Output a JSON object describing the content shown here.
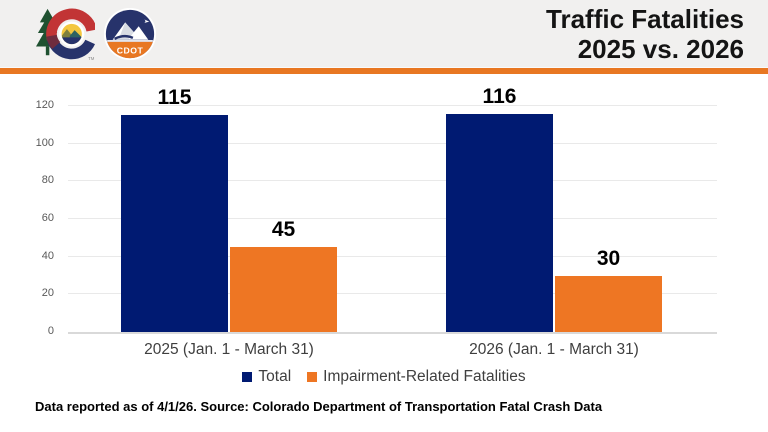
{
  "header": {
    "title_line1": "Traffic Fatalities",
    "title_line2": "2025 vs. 2026",
    "cdot_label": "CDOT",
    "trademark": "TM"
  },
  "colors": {
    "navy": "#001A72",
    "orange": "#EE7623",
    "divider_orange": "#E87722",
    "header_bg": "#F1F0EF",
    "gridline": "#E9E9E9",
    "axis_tick_text": "#595959",
    "category_text": "#3F3F3F"
  },
  "chart_data": {
    "type": "bar",
    "title": "Traffic Fatalities 2025 vs. 2026",
    "categories": [
      "2025 (Jan. 1 - March 31)",
      "2026 (Jan. 1 - March 31)"
    ],
    "series": [
      {
        "name": "Total",
        "color": "#001A72",
        "values": [
          115,
          116
        ]
      },
      {
        "name": "Impairment-Related Fatalities",
        "color": "#EE7623",
        "values": [
          45,
          30
        ]
      }
    ],
    "xlabel": "",
    "ylabel": "",
    "ylim": [
      0,
      120
    ],
    "yticks": [
      0,
      20,
      40,
      60,
      80,
      100,
      120
    ],
    "grid": true,
    "legend_position": "bottom"
  },
  "footer": {
    "text": "Data reported as of 4/1/26. Source: Colorado Department of Transportation Fatal Crash Data"
  }
}
